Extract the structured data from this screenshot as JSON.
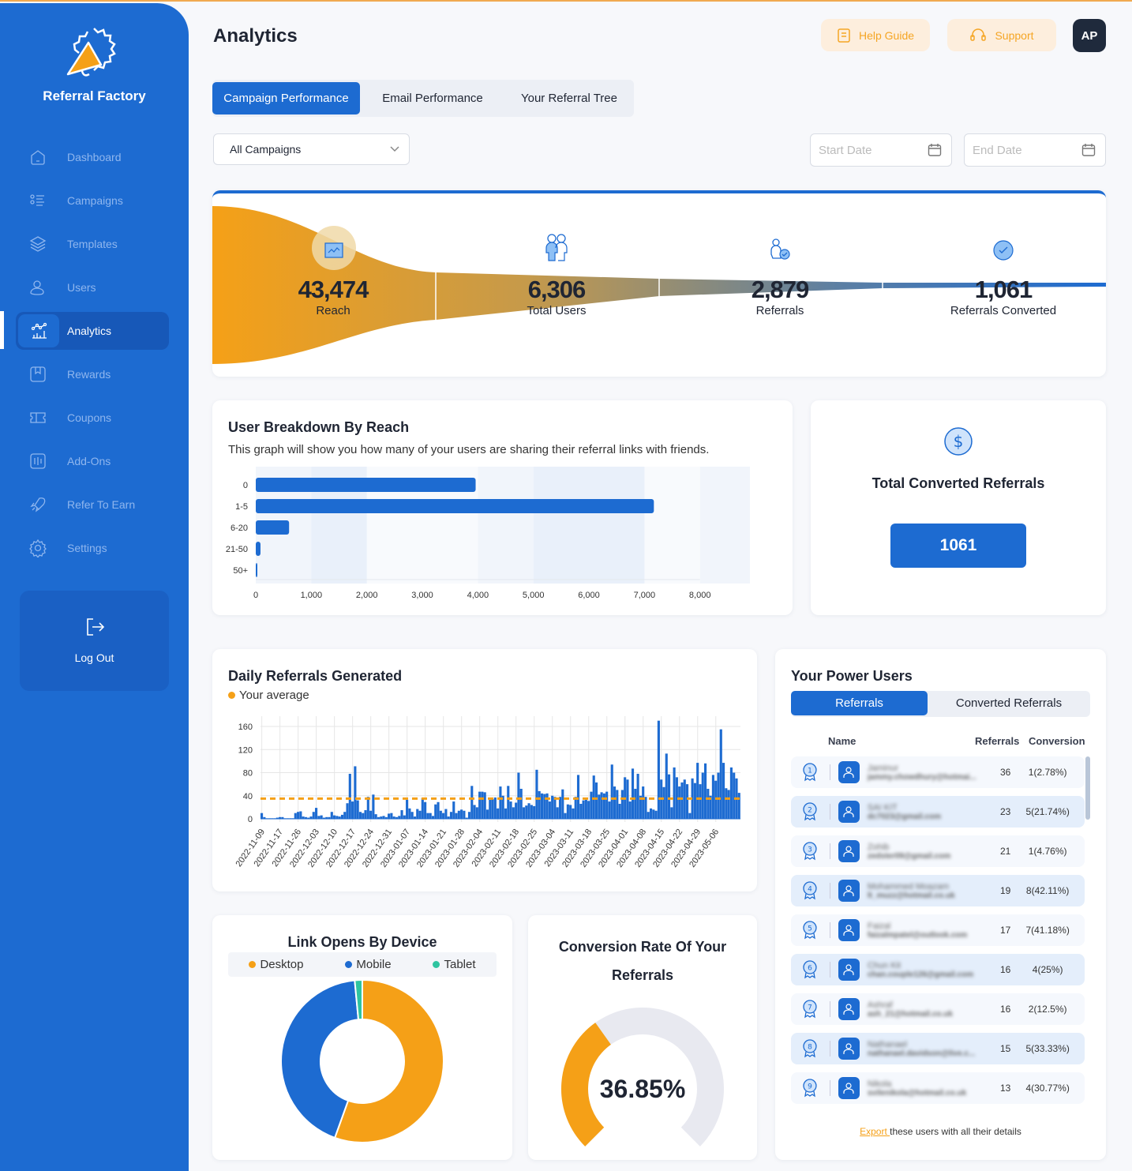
{
  "app": {
    "name": "Referral Factory"
  },
  "sidebar": {
    "items": [
      {
        "label": "Dashboard",
        "icon": "home-icon"
      },
      {
        "label": "Campaigns",
        "icon": "list-icon"
      },
      {
        "label": "Templates",
        "icon": "layers-icon"
      },
      {
        "label": "Users",
        "icon": "users-icon"
      },
      {
        "label": "Analytics",
        "icon": "analytics-icon",
        "active": true
      },
      {
        "label": "Rewards",
        "icon": "reward-icon"
      },
      {
        "label": "Coupons",
        "icon": "coupon-icon"
      },
      {
        "label": "Add-Ons",
        "icon": "addons-icon"
      },
      {
        "label": "Refer To Earn",
        "icon": "rocket-icon"
      },
      {
        "label": "Settings",
        "icon": "gear-icon"
      }
    ],
    "logout": "Log Out"
  },
  "header": {
    "title": "Analytics",
    "help": "Help Guide",
    "support": "Support",
    "avatar": "AP"
  },
  "tabs": [
    "Campaign Performance",
    "Email Performance",
    "Your Referral Tree"
  ],
  "filters": {
    "campaign": "All Campaigns",
    "start_placeholder": "Start Date",
    "end_placeholder": "End Date"
  },
  "funnel": [
    {
      "value": "43,474",
      "label": "Reach"
    },
    {
      "value": "6,306",
      "label": "Total Users"
    },
    {
      "value": "2,879",
      "label": "Referrals"
    },
    {
      "value": "1,061",
      "label": "Referrals Converted"
    }
  ],
  "colors": {
    "primary": "#1d6bd1",
    "accent": "#f5a017",
    "tablet": "#2ec4a0",
    "dark": "#1f2a3c"
  },
  "breakdown": {
    "title": "User Breakdown By Reach",
    "subtitle": "This graph will show you how many of your users are sharing their referral links with friends."
  },
  "converted": {
    "title": "Total Converted Referrals",
    "value": "1061"
  },
  "daily": {
    "title": "Daily Referrals Generated",
    "legend": "Your average"
  },
  "power_users": {
    "title": "Your Power Users",
    "tabs": [
      "Referrals",
      "Converted Referrals"
    ],
    "headers": [
      "Name",
      "Referrals",
      "Conversion"
    ],
    "rows": [
      {
        "rank": "1",
        "name": "Jaminur",
        "email": "jammy.chowdhury@hotmai...",
        "referrals": "36",
        "conversion": "1(2.78%)"
      },
      {
        "rank": "2",
        "name": "SAI KIT",
        "email": "dc7023@gmail.com",
        "referrals": "23",
        "conversion": "5(21.74%)"
      },
      {
        "rank": "3",
        "name": "Zohib",
        "email": "zedster09@gmail.com",
        "referrals": "21",
        "conversion": "1(4.76%)"
      },
      {
        "rank": "4",
        "name": "Mohammed Moazam",
        "email": "lt_muzz@hotmail.co.uk",
        "referrals": "19",
        "conversion": "8(42.11%)"
      },
      {
        "rank": "5",
        "name": "Faizal",
        "email": "faizalmpatel@outlook.com",
        "referrals": "17",
        "conversion": "7(41.18%)"
      },
      {
        "rank": "6",
        "name": "Chun Kit",
        "email": "chan.couple126@gmail.com",
        "referrals": "16",
        "conversion": "4(25%)"
      },
      {
        "rank": "7",
        "name": "Ashraf",
        "email": "ash_21@hotmail.co.uk",
        "referrals": "16",
        "conversion": "2(12.5%)"
      },
      {
        "rank": "8",
        "name": "Nathanael",
        "email": "nathanael.davidson@live.c...",
        "referrals": "15",
        "conversion": "5(33.33%)"
      },
      {
        "rank": "9",
        "name": "Nikola",
        "email": "svilenikola@hotmail.co.uk",
        "referrals": "13",
        "conversion": "4(30.77%)"
      }
    ],
    "export_link": "Export ",
    "export_text": "these users with all their details"
  },
  "devices": {
    "title": "Link Opens By Device"
  },
  "conversion": {
    "title": "Conversion Rate Of Your Referrals",
    "value_text": "36.85%"
  },
  "chart_data": [
    {
      "type": "bar",
      "orientation": "horizontal",
      "categories": [
        "0",
        "1-5",
        "6-20",
        "21-50",
        "50+"
      ],
      "values": [
        3960,
        7170,
        600,
        85,
        28
      ],
      "xlim": [
        0,
        8900
      ],
      "xticks": [
        "0",
        "1,000",
        "2,000",
        "3,000",
        "4,000",
        "5,000",
        "6,000",
        "7,000",
        "8,000"
      ]
    },
    {
      "type": "bar",
      "start_date": "2022-11-09",
      "ylim": [
        0,
        175
      ],
      "yticks": [
        "0",
        "40",
        "80",
        "120",
        "160"
      ],
      "average": 35,
      "xticks": [
        "2022-11-09",
        "2022-11-17",
        "2022-11-26",
        "2022-12-03",
        "2022-12-10",
        "2022-12-17",
        "2022-12-24",
        "2022-12-31",
        "2023-01-07",
        "2023-01-14",
        "2023-01-21",
        "2023-01-28",
        "2023-02-04",
        "2023-02-11",
        "2023-02-18",
        "2023-02-25",
        "2023-03-04",
        "2023-03-11",
        "2023-03-18",
        "2023-03-25",
        "2023-04-01",
        "2023-04-08",
        "2023-04-15",
        "2023-04-22",
        "2023-04-29",
        "2023-05-06"
      ],
      "values": [
        10,
        3,
        1,
        1,
        1,
        1,
        2,
        3,
        3,
        1,
        1,
        1,
        1,
        10,
        12,
        13,
        4,
        3,
        2,
        4,
        12,
        19,
        5,
        6,
        2,
        3,
        3,
        12,
        6,
        5,
        4,
        7,
        12,
        27,
        78,
        30,
        91,
        32,
        12,
        10,
        15,
        38,
        14,
        42,
        8,
        3,
        4,
        5,
        3,
        9,
        10,
        4,
        3,
        5,
        15,
        6,
        33,
        18,
        12,
        4,
        17,
        14,
        36,
        29,
        10,
        10,
        5,
        25,
        29,
        14,
        10,
        17,
        4,
        12,
        30,
        10,
        14,
        16,
        14,
        2,
        12,
        57,
        24,
        20,
        47,
        47,
        46,
        16,
        33,
        34,
        37,
        18,
        56,
        40,
        18,
        57,
        30,
        20,
        28,
        80,
        52,
        20,
        23,
        27,
        24,
        22,
        85,
        48,
        44,
        43,
        44,
        30,
        40,
        38,
        20,
        38,
        51,
        10,
        25,
        24,
        18,
        38,
        76,
        26,
        32,
        33,
        31,
        47,
        75,
        63,
        42,
        46,
        44,
        47,
        30,
        94,
        56,
        50,
        26,
        50,
        72,
        68,
        30,
        87,
        52,
        78,
        40,
        56,
        38,
        12,
        18,
        16,
        14,
        170,
        68,
        55,
        113,
        77,
        20,
        89,
        72,
        56,
        63,
        68,
        60,
        10,
        70,
        62,
        97,
        60,
        80,
        96,
        52,
        40,
        76,
        66,
        80,
        155,
        97,
        53,
        50,
        89,
        80,
        70,
        45
      ]
    },
    {
      "type": "pie",
      "variant": "donut",
      "categories": [
        "Desktop",
        "Mobile",
        "Tablet"
      ],
      "values": [
        55.5,
        43,
        1.5
      ],
      "legend": "top"
    },
    {
      "type": "gauge",
      "value": 36.85,
      "max": 100
    }
  ]
}
